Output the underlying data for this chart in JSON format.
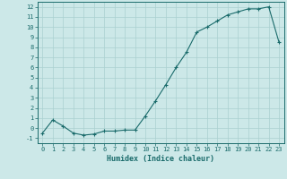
{
  "title": "",
  "xlabel": "Humidex (Indice chaleur)",
  "ylabel": "",
  "bg_color": "#cce8e8",
  "line_color": "#1a6b6b",
  "marker_color": "#1a6b6b",
  "grid_color": "#aad0d0",
  "xlim": [
    -0.5,
    23.5
  ],
  "ylim": [
    -1.5,
    12.5
  ],
  "yticks": [
    -1,
    0,
    1,
    2,
    3,
    4,
    5,
    6,
    7,
    8,
    9,
    10,
    11,
    12
  ],
  "xticks": [
    0,
    1,
    2,
    3,
    4,
    5,
    6,
    7,
    8,
    9,
    10,
    11,
    12,
    13,
    14,
    15,
    16,
    17,
    18,
    19,
    20,
    21,
    22,
    23
  ],
  "x": [
    0,
    1,
    2,
    3,
    4,
    5,
    6,
    7,
    8,
    9,
    10,
    11,
    12,
    13,
    14,
    15,
    16,
    17,
    18,
    19,
    20,
    21,
    22,
    23
  ],
  "y": [
    -0.5,
    0.8,
    0.2,
    -0.5,
    -0.7,
    -0.6,
    -0.3,
    -0.3,
    -0.2,
    -0.2,
    1.2,
    2.7,
    4.3,
    6.0,
    7.5,
    9.5,
    10.0,
    10.6,
    11.2,
    11.5,
    11.8,
    11.8,
    12.0,
    8.5
  ],
  "fontsize_label": 6,
  "fontsize_tick": 5
}
